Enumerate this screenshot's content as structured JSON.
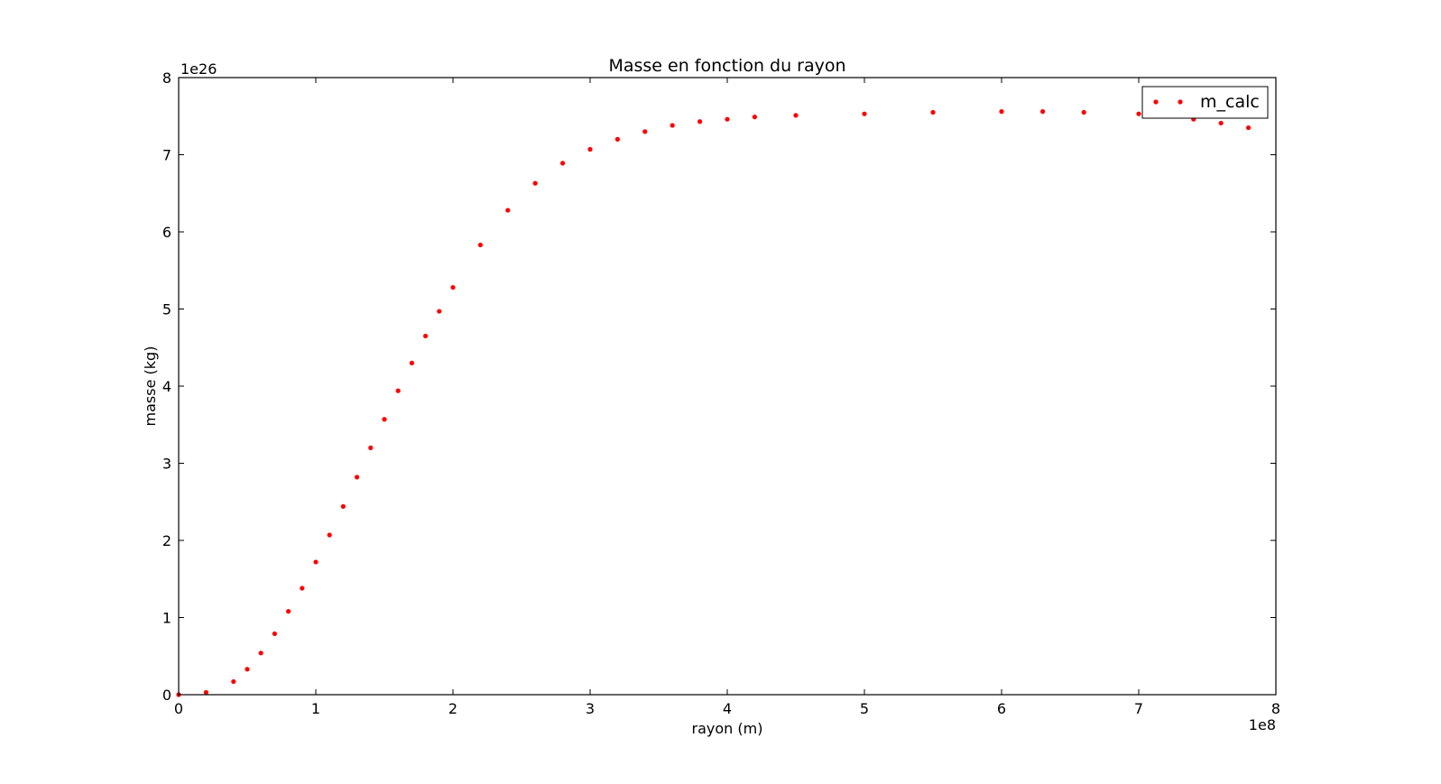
{
  "chart_data": {
    "type": "scatter",
    "title": "Masse en fonction du rayon",
    "xlabel": "rayon (m)",
    "ylabel": "masse (kg)",
    "x_offset_label": "1e8",
    "y_offset_label": "1e26",
    "xlim": [
      0,
      8
    ],
    "ylim": [
      0,
      8
    ],
    "x_ticks": [
      "0",
      "1",
      "2",
      "3",
      "4",
      "5",
      "6",
      "7",
      "8"
    ],
    "y_ticks": [
      "0",
      "1",
      "2",
      "3",
      "4",
      "5",
      "6",
      "7",
      "8"
    ],
    "grid": false,
    "legend_position": "top-right",
    "series": [
      {
        "name": "m_calc",
        "color": "#ff0000",
        "marker": "dot",
        "x": [
          0.0,
          0.2,
          0.4,
          0.5,
          0.6,
          0.7,
          0.8,
          0.9,
          1.0,
          1.1,
          1.2,
          1.3,
          1.4,
          1.5,
          1.6,
          1.7,
          1.8,
          1.9,
          2.0,
          2.2,
          2.4,
          2.6,
          2.8,
          3.0,
          3.2,
          3.4,
          3.6,
          3.8,
          4.0,
          4.2,
          4.5,
          5.0,
          5.5,
          6.0,
          6.3,
          6.6,
          7.0,
          7.2,
          7.4,
          7.6,
          7.8
        ],
        "y": [
          0.0,
          0.03,
          0.17,
          0.33,
          0.54,
          0.79,
          1.08,
          1.38,
          1.72,
          2.07,
          2.44,
          2.82,
          3.2,
          3.57,
          3.94,
          4.3,
          4.65,
          4.97,
          5.28,
          5.83,
          6.28,
          6.63,
          6.89,
          7.07,
          7.2,
          7.3,
          7.38,
          7.43,
          7.46,
          7.49,
          7.51,
          7.53,
          7.55,
          7.56,
          7.56,
          7.55,
          7.53,
          7.5,
          7.46,
          7.41,
          7.35
        ]
      }
    ]
  }
}
